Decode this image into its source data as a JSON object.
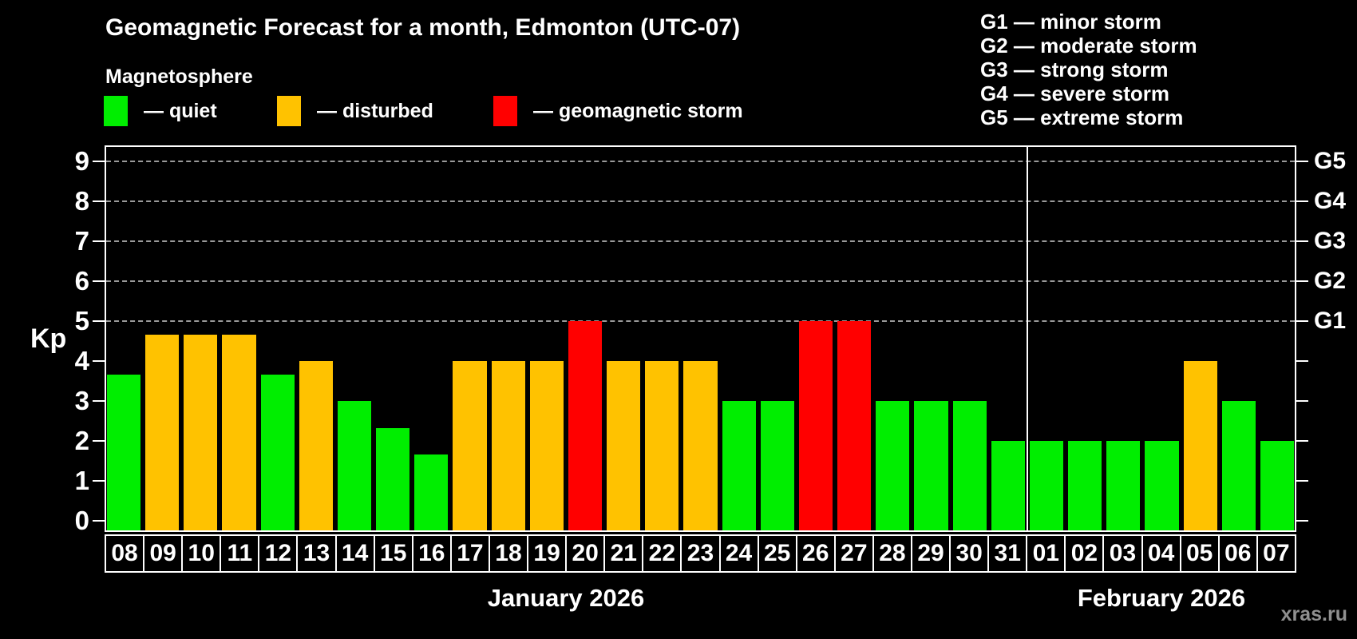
{
  "header": {
    "subtitle": "Magnetosphere"
  },
  "legend": {
    "items": [
      {
        "name": "quiet",
        "label": "— quiet",
        "color": "#00EE00"
      },
      {
        "name": "disturbed",
        "label": "— disturbed",
        "color": "#FFC200"
      },
      {
        "name": "storm",
        "label": "— geomagnetic storm",
        "color": "#FF0000"
      }
    ]
  },
  "g_legend": {
    "lines": [
      "G1 — minor storm",
      "G2 — moderate storm",
      "G3 — strong storm",
      "G4 — severe storm",
      "G5 — extreme storm"
    ]
  },
  "axis": {
    "kp_label": "Kp",
    "y_ticks": [
      0,
      1,
      2,
      3,
      4,
      5,
      6,
      7,
      8,
      9
    ],
    "right_labels": [
      {
        "kp": 5,
        "label": "G1"
      },
      {
        "kp": 6,
        "label": "G2"
      },
      {
        "kp": 7,
        "label": "G3"
      },
      {
        "kp": 8,
        "label": "G4"
      },
      {
        "kp": 9,
        "label": "G5"
      }
    ]
  },
  "watermark": "xras.ru",
  "chart_data": {
    "type": "bar",
    "title": "Geomagnetic Forecast for a month, Edmonton (UTC-07)",
    "ylabel": "Kp",
    "ylim": [
      0,
      9.4
    ],
    "grid": "horizontal dashed lines at Kp 5,6,7,8,9 only",
    "legend_position": "top-left",
    "gridlines_at": [
      5,
      6,
      7,
      8,
      9
    ],
    "months": [
      {
        "label": "January 2026",
        "days": 24
      },
      {
        "label": "February 2026",
        "days": 7
      }
    ],
    "categories": [
      "08",
      "09",
      "10",
      "11",
      "12",
      "13",
      "14",
      "15",
      "16",
      "17",
      "18",
      "19",
      "20",
      "21",
      "22",
      "23",
      "24",
      "25",
      "26",
      "27",
      "28",
      "29",
      "30",
      "31",
      "01",
      "02",
      "03",
      "04",
      "05",
      "06",
      "07"
    ],
    "values": [
      3.67,
      4.67,
      4.67,
      4.67,
      3.67,
      4.0,
      3.0,
      2.33,
      1.67,
      4.0,
      4.0,
      4.0,
      5.0,
      4.0,
      4.0,
      4.0,
      3.0,
      3.0,
      5.0,
      5.0,
      3.0,
      3.0,
      3.0,
      2.0,
      2.0,
      2.0,
      2.0,
      2.0,
      4.0,
      3.0,
      2.0
    ],
    "statuses": [
      "quiet",
      "disturbed",
      "disturbed",
      "disturbed",
      "quiet",
      "disturbed",
      "quiet",
      "quiet",
      "quiet",
      "disturbed",
      "disturbed",
      "disturbed",
      "storm",
      "disturbed",
      "disturbed",
      "disturbed",
      "quiet",
      "quiet",
      "storm",
      "storm",
      "quiet",
      "quiet",
      "quiet",
      "quiet",
      "quiet",
      "quiet",
      "quiet",
      "quiet",
      "disturbed",
      "quiet",
      "quiet"
    ],
    "status_colors": {
      "quiet": "#00EE00",
      "disturbed": "#FFC200",
      "storm": "#FF0000"
    }
  }
}
